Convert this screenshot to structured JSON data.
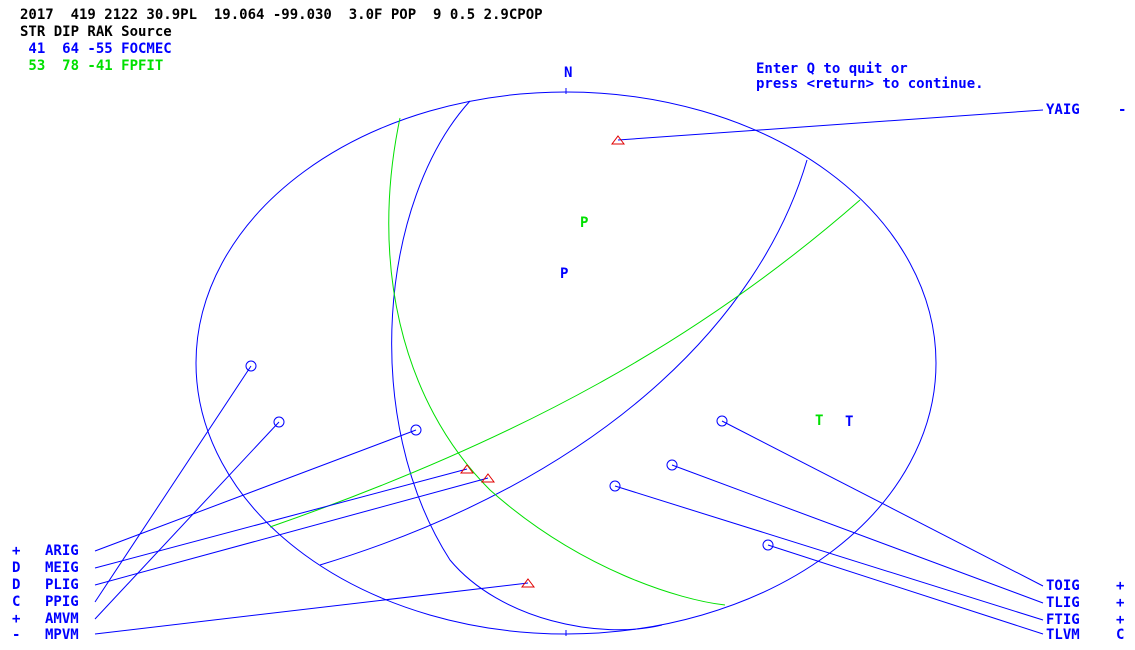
{
  "header": {
    "event_line": "2017  419 2122 30.9PL  19.064 -99.030  3.0F POP  9 0.5 2.9CPOP",
    "table_header": "STR DIP RAK Source",
    "solutions": [
      {
        "row": " 41  64 -55 FOCMEC",
        "color": "#0000ff"
      },
      {
        "row": " 53  78 -41 FPFIT",
        "color": "#00e000"
      }
    ]
  },
  "instructions": {
    "line1": "Enter Q to quit or",
    "line2": "press <return> to continue."
  },
  "projection": {
    "north_label": "N",
    "axes": [
      {
        "label": "P",
        "color": "#00e000"
      },
      {
        "label": "P",
        "color": "#0000ff"
      },
      {
        "label": "T",
        "color": "#00e000"
      },
      {
        "label": "T",
        "color": "#0000ff"
      }
    ]
  },
  "stations": {
    "left": [
      {
        "polarity": "+",
        "name": "ARIG",
        "symbol": "circle"
      },
      {
        "polarity": "D",
        "name": "MEIG",
        "symbol": "triangle"
      },
      {
        "polarity": "D",
        "name": "PLIG",
        "symbol": "triangle"
      },
      {
        "polarity": "C",
        "name": "PPIG",
        "symbol": "circle"
      },
      {
        "polarity": "+",
        "name": "AMVM",
        "symbol": "circle"
      },
      {
        "polarity": "-",
        "name": "MPVM",
        "symbol": "triangle"
      }
    ],
    "right": [
      {
        "polarity": "-",
        "name": "YAIG",
        "symbol": "triangle"
      },
      {
        "polarity": "+",
        "name": "TOIG",
        "symbol": "circle"
      },
      {
        "polarity": "+",
        "name": "TLIG",
        "symbol": "circle"
      },
      {
        "polarity": "+",
        "name": "FTIG",
        "symbol": "circle"
      },
      {
        "polarity": "C",
        "name": "TLVM",
        "symbol": "circle"
      }
    ]
  },
  "colors": {
    "text": "#0000ff",
    "header_text": "#000000",
    "focmec": "#0000ff",
    "fpfit": "#00e000",
    "dilatation": "#e00000"
  }
}
